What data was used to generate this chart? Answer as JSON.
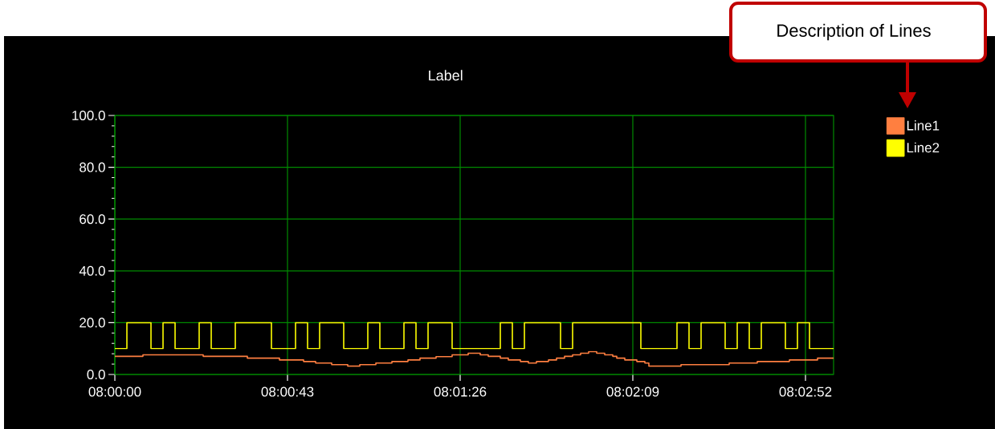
{
  "chart_data": {
    "type": "step",
    "title": "Label",
    "series": [
      {
        "name": "Line1",
        "color": "#ff7f40",
        "x": [
          8,
          8.001944,
          8.006111,
          8.009167,
          8.011389,
          8.013056,
          8.013889,
          8.015,
          8.016111,
          8.016944,
          8.018056,
          8.019167,
          8.020278,
          8.021111,
          8.022222,
          8.023333,
          8.024444,
          8.025278,
          8.025833,
          8.026667,
          8.027222,
          8.028056,
          8.028611,
          8.029167,
          8.03,
          8.030556,
          8.031111,
          8.031667,
          8.032222,
          8.032778,
          8.033333,
          8.033889,
          8.034444,
          8.034722,
          8.035278,
          8.036111,
          8.036667,
          8.036944,
          8.039167,
          8.0425,
          8.044444,
          8.046667,
          8.048611,
          8.049722
        ],
        "values": [
          7.0,
          7.6,
          7.0,
          6.3,
          5.6,
          5.0,
          4.4,
          3.8,
          3.2,
          3.8,
          4.4,
          5.0,
          5.6,
          6.3,
          6.9,
          7.6,
          8.2,
          7.6,
          7.0,
          6.3,
          5.6,
          5.0,
          4.4,
          5.0,
          5.6,
          6.3,
          7.0,
          7.6,
          8.2,
          8.8,
          8.2,
          7.6,
          7.0,
          6.3,
          5.6,
          5.0,
          4.4,
          3.2,
          3.8,
          4.4,
          5.0,
          5.6,
          6.3,
          6.3
        ]
      },
      {
        "name": "Line2",
        "color": "#ffff00",
        "x": [
          8,
          8.000833,
          8.0025,
          8.003333,
          8.004167,
          8.005833,
          8.006667,
          8.008333,
          8.010833,
          8.0125,
          8.013333,
          8.014167,
          8.015833,
          8.0175,
          8.018333,
          8.02,
          8.020833,
          8.021667,
          8.023333,
          8.026667,
          8.0275,
          8.028333,
          8.030833,
          8.031667,
          8.036389,
          8.038889,
          8.039722,
          8.040556,
          8.042222,
          8.043056,
          8.043889,
          8.044722,
          8.046389,
          8.047222,
          8.048056,
          8.049722
        ],
        "values": [
          10,
          20,
          10,
          20,
          10,
          20,
          10,
          20,
          10,
          20,
          10,
          20,
          10,
          20,
          10,
          20,
          10,
          20,
          10,
          20,
          10,
          20,
          10,
          20,
          10,
          20,
          10,
          20,
          10,
          20,
          10,
          20,
          10,
          20,
          10,
          10
        ]
      }
    ],
    "xlim": [
      8,
      8.049722
    ],
    "xticks": [
      {
        "value": 8,
        "label": "08:00:00"
      },
      {
        "value": 8.011944,
        "label": "08:00:43"
      },
      {
        "value": 8.023889,
        "label": "08:01:26"
      },
      {
        "value": 8.035833,
        "label": "08:02:09"
      },
      {
        "value": 8.047778,
        "label": "08:02:52"
      }
    ],
    "ylim": [
      0,
      100
    ],
    "yticks": [
      {
        "value": 0,
        "label": "0.0"
      },
      {
        "value": 20,
        "label": "20.0"
      },
      {
        "value": 40,
        "label": "40.0"
      },
      {
        "value": 60,
        "label": "60.0"
      },
      {
        "value": 80,
        "label": "80.0"
      },
      {
        "value": 100,
        "label": "100.0"
      }
    ],
    "grid": true,
    "legend": "right",
    "annotations": [
      "Description of Lines"
    ]
  }
}
